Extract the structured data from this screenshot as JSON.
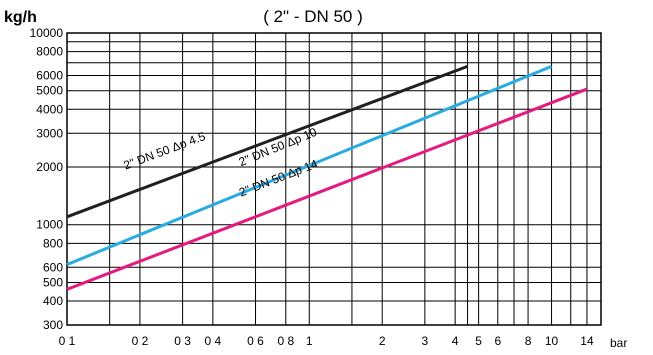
{
  "chart_data": {
    "type": "line",
    "title": "( 2\" - DN 50 )",
    "ylabel": "kg/h",
    "xlabel": "bar",
    "x_scale": "log",
    "y_scale": "log",
    "xlim": [
      0.1,
      16
    ],
    "ylim": [
      300,
      10000
    ],
    "grid": true,
    "x_ticks": [
      {
        "value": 0.1,
        "label": "0 1"
      },
      {
        "value": 0.2,
        "label": "0 2"
      },
      {
        "value": 0.3,
        "label": "0 3"
      },
      {
        "value": 0.4,
        "label": "0 4"
      },
      {
        "value": 0.6,
        "label": "0 6"
      },
      {
        "value": 0.8,
        "label": "0 8"
      },
      {
        "value": 1,
        "label": "1"
      },
      {
        "value": 2,
        "label": "2"
      },
      {
        "value": 3,
        "label": "3"
      },
      {
        "value": 4,
        "label": "4"
      },
      {
        "value": 5,
        "label": "5"
      },
      {
        "value": 6,
        "label": "6"
      },
      {
        "value": 8,
        "label": "8"
      },
      {
        "value": 10,
        "label": "10"
      },
      {
        "value": 14,
        "label": "14"
      }
    ],
    "x_grid_extra": [
      0.15,
      1.5,
      4.5,
      7,
      12
    ],
    "y_ticks": [
      {
        "value": 10000,
        "label": "10000"
      },
      {
        "value": 8000,
        "label": "8000"
      },
      {
        "value": 6000,
        "label": "6000"
      },
      {
        "value": 5000,
        "label": "5000"
      },
      {
        "value": 4000,
        "label": "4000"
      },
      {
        "value": 3000,
        "label": "3000"
      },
      {
        "value": 2000,
        "label": "2000"
      },
      {
        "value": 1000,
        "label": "1000"
      },
      {
        "value": 800,
        "label": "800"
      },
      {
        "value": 600,
        "label": "600"
      },
      {
        "value": 500,
        "label": "500"
      },
      {
        "value": 400,
        "label": "400"
      },
      {
        "value": 300,
        "label": "300"
      }
    ],
    "y_grid_extra": [
      9000,
      7000
    ],
    "series": [
      {
        "name": "2\" DN 50 Δp 4.5",
        "color": "#231f20",
        "x": [
          0.1,
          4.5
        ],
        "y": [
          1100,
          6700
        ]
      },
      {
        "name": "2\" DN 50 Δp 10",
        "color": "#29aae1",
        "x": [
          0.1,
          10
        ],
        "y": [
          620,
          6700
        ]
      },
      {
        "name": "2\" DN 50 Δp 14",
        "color": "#e5197f",
        "x": [
          0.1,
          14
        ],
        "y": [
          460,
          5100
        ]
      }
    ]
  }
}
